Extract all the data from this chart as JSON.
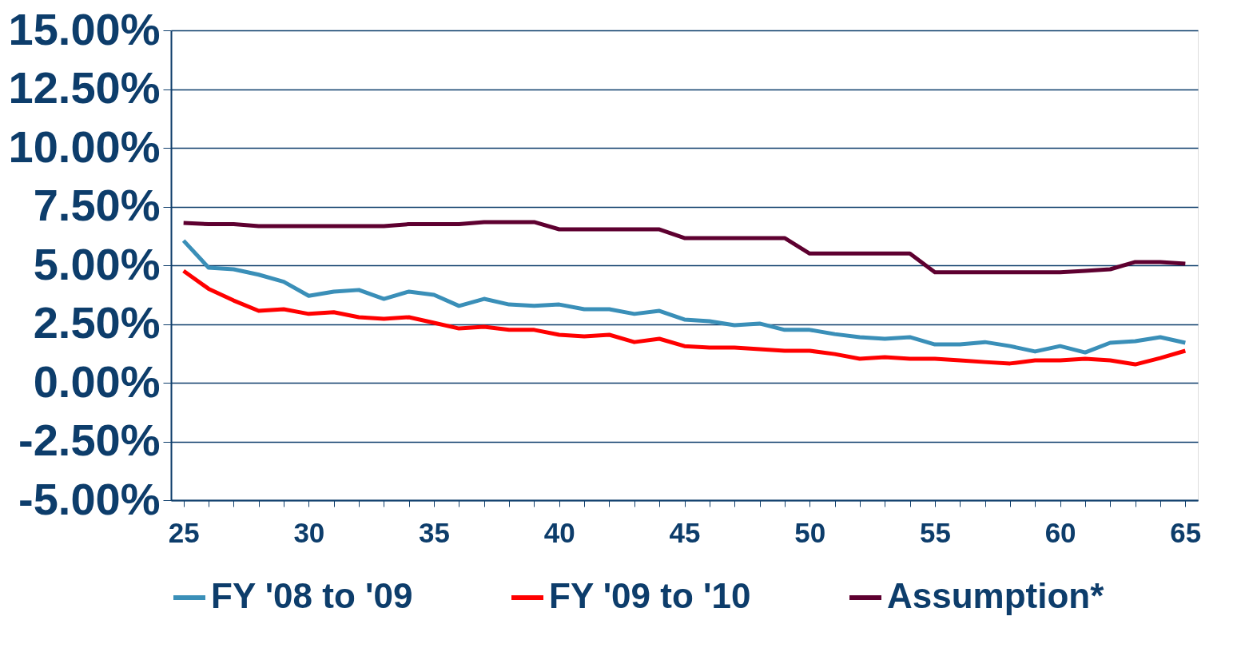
{
  "chart_data": {
    "type": "line",
    "x": [
      25,
      26,
      27,
      28,
      29,
      30,
      31,
      32,
      33,
      34,
      35,
      36,
      37,
      38,
      39,
      40,
      41,
      42,
      43,
      44,
      45,
      46,
      47,
      48,
      49,
      50,
      51,
      52,
      53,
      54,
      55,
      56,
      57,
      58,
      59,
      60,
      61,
      62,
      63,
      64,
      65
    ],
    "series": [
      {
        "name": "FY '08 to '09",
        "color": "#3a8fb8",
        "values": [
          6.05,
          4.9,
          4.83,
          4.6,
          4.3,
          3.7,
          3.88,
          3.95,
          3.57,
          3.88,
          3.74,
          3.27,
          3.57,
          3.33,
          3.27,
          3.33,
          3.13,
          3.13,
          2.93,
          3.06,
          2.69,
          2.62,
          2.45,
          2.52,
          2.25,
          2.25,
          2.07,
          1.94,
          1.87,
          1.94,
          1.63,
          1.63,
          1.73,
          1.56,
          1.33,
          1.56,
          1.29,
          1.7,
          1.77,
          1.94,
          1.7
        ]
      },
      {
        "name": "FY '09 to '10",
        "color": "#ff0000",
        "values": [
          4.76,
          4.0,
          3.5,
          3.06,
          3.13,
          2.93,
          3.0,
          2.79,
          2.72,
          2.79,
          2.55,
          2.31,
          2.38,
          2.25,
          2.25,
          2.04,
          1.97,
          2.04,
          1.73,
          1.87,
          1.56,
          1.5,
          1.5,
          1.43,
          1.36,
          1.36,
          1.22,
          1.02,
          1.09,
          1.02,
          1.02,
          0.95,
          0.88,
          0.82,
          0.95,
          0.95,
          1.02,
          0.95,
          0.78,
          1.05,
          1.36
        ]
      },
      {
        "name": "Assumption*",
        "color": "#5e0030",
        "values": [
          6.8,
          6.75,
          6.75,
          6.67,
          6.67,
          6.67,
          6.67,
          6.67,
          6.67,
          6.75,
          6.75,
          6.75,
          6.84,
          6.84,
          6.84,
          6.53,
          6.53,
          6.53,
          6.53,
          6.53,
          6.16,
          6.16,
          6.16,
          6.16,
          6.16,
          5.5,
          5.5,
          5.5,
          5.5,
          5.5,
          4.7,
          4.7,
          4.7,
          4.7,
          4.7,
          4.7,
          4.76,
          4.83,
          5.14,
          5.14,
          5.07
        ]
      }
    ],
    "xlim": [
      24.5,
      65.5
    ],
    "xticks": [
      25,
      {
        "value": 26,
        "label": null
      },
      {
        "value": 27,
        "label": null
      },
      {
        "value": 28,
        "label": null
      },
      {
        "value": 29,
        "label": null
      },
      30,
      {
        "value": 31,
        "label": null
      },
      {
        "value": 32,
        "label": null
      },
      {
        "value": 33,
        "label": null
      },
      {
        "value": 34,
        "label": null
      },
      35,
      {
        "value": 36,
        "label": null
      },
      {
        "value": 37,
        "label": null
      },
      {
        "value": 38,
        "label": null
      },
      {
        "value": 39,
        "label": null
      },
      40,
      {
        "value": 41,
        "label": null
      },
      {
        "value": 42,
        "label": null
      },
      {
        "value": 43,
        "label": null
      },
      {
        "value": 44,
        "label": null
      },
      45,
      {
        "value": 46,
        "label": null
      },
      {
        "value": 47,
        "label": null
      },
      {
        "value": 48,
        "label": null
      },
      {
        "value": 49,
        "label": null
      },
      50,
      {
        "value": 51,
        "label": null
      },
      {
        "value": 52,
        "label": null
      },
      {
        "value": 53,
        "label": null
      },
      {
        "value": 54,
        "label": null
      },
      55,
      {
        "value": 56,
        "label": null
      },
      {
        "value": 57,
        "label": null
      },
      {
        "value": 58,
        "label": null
      },
      {
        "value": 59,
        "label": null
      },
      60,
      {
        "value": 61,
        "label": null
      },
      {
        "value": 62,
        "label": null
      },
      {
        "value": 63,
        "label": null
      },
      {
        "value": 64,
        "label": null
      },
      65
    ],
    "ylim": [
      -5,
      15
    ],
    "yticks": [
      {
        "value": -5,
        "label": "-5.00%"
      },
      {
        "value": -2.5,
        "label": "-2.50%"
      },
      {
        "value": 0,
        "label": "0.00%"
      },
      {
        "value": 2.5,
        "label": "2.50%"
      },
      {
        "value": 5,
        "label": "5.00%"
      },
      {
        "value": 7.5,
        "label": "7.50%"
      },
      {
        "value": 10,
        "label": "10.00%"
      },
      {
        "value": 12.5,
        "label": "12.50%"
      },
      {
        "value": 15,
        "label": "15.00%"
      }
    ],
    "grid": "y",
    "legend": "bottom",
    "marker": "none",
    "line_style": "solid"
  }
}
